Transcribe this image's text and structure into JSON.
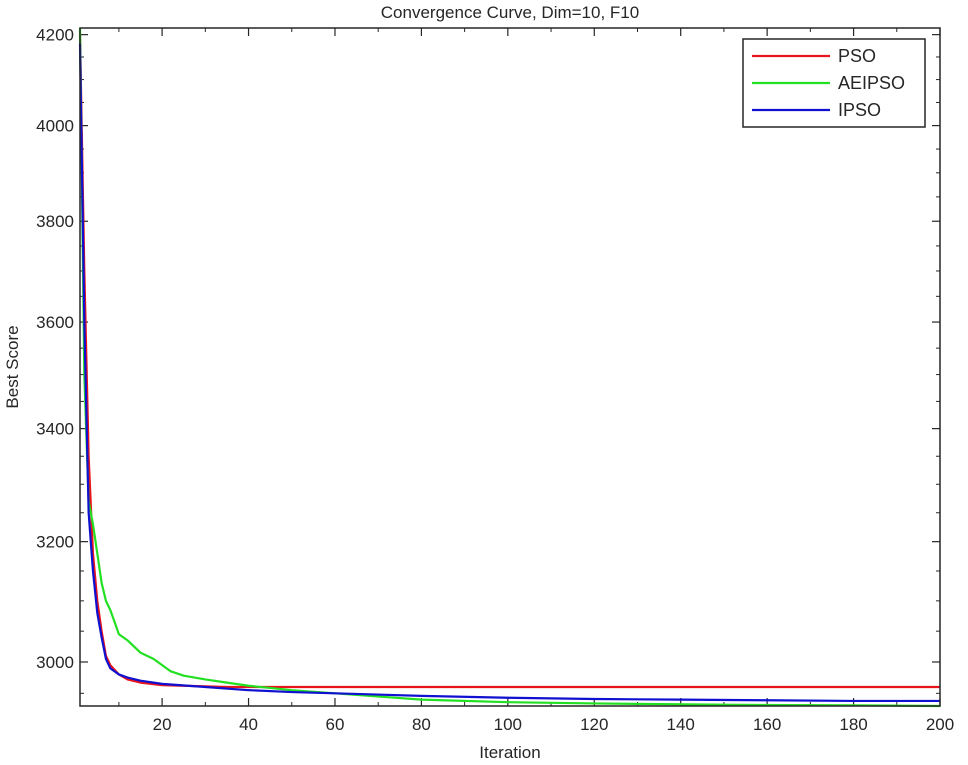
{
  "chart_data": {
    "type": "line",
    "title": "Convergence Curve, Dim=10, F10",
    "xlabel": "Iteration",
    "ylabel": "Best Score",
    "xlim": [
      1,
      200
    ],
    "ylim": [
      2930,
      4215
    ],
    "y_scale": "log",
    "grid": false,
    "legend_position": "top-right",
    "xticks": [
      20,
      40,
      60,
      80,
      100,
      120,
      140,
      160,
      180,
      200
    ],
    "yticks": [
      3000,
      3200,
      3400,
      3600,
      3800,
      4000,
      4200
    ],
    "series": [
      {
        "name": "PSO",
        "color": "#e8141c",
        "points": [
          [
            1,
            4200
          ],
          [
            2,
            3700
          ],
          [
            3,
            3350
          ],
          [
            4,
            3180
          ],
          [
            5,
            3100
          ],
          [
            6,
            3050
          ],
          [
            7,
            3010
          ],
          [
            8,
            2995
          ],
          [
            10,
            2980
          ],
          [
            12,
            2972
          ],
          [
            15,
            2967
          ],
          [
            20,
            2963
          ],
          [
            25,
            2962
          ],
          [
            30,
            2961
          ],
          [
            35,
            2960
          ],
          [
            40,
            2960
          ],
          [
            60,
            2960
          ],
          [
            100,
            2960
          ],
          [
            150,
            2960
          ],
          [
            200,
            2960
          ]
        ]
      },
      {
        "name": "AEIPSO",
        "color": "#22e022",
        "points": [
          [
            1,
            4215
          ],
          [
            2,
            3500
          ],
          [
            3,
            3270
          ],
          [
            4,
            3230
          ],
          [
            5,
            3180
          ],
          [
            6,
            3130
          ],
          [
            7,
            3100
          ],
          [
            8,
            3085
          ],
          [
            9,
            3065
          ],
          [
            10,
            3045
          ],
          [
            12,
            3035
          ],
          [
            15,
            3015
          ],
          [
            18,
            3005
          ],
          [
            20,
            2995
          ],
          [
            22,
            2985
          ],
          [
            25,
            2978
          ],
          [
            30,
            2972
          ],
          [
            35,
            2967
          ],
          [
            40,
            2962
          ],
          [
            50,
            2955
          ],
          [
            60,
            2950
          ],
          [
            80,
            2940
          ],
          [
            100,
            2936
          ],
          [
            120,
            2934
          ],
          [
            150,
            2932
          ],
          [
            180,
            2931
          ],
          [
            200,
            2930
          ]
        ]
      },
      {
        "name": "IPSO",
        "color": "#1010d0",
        "points": [
          [
            1,
            4180
          ],
          [
            2,
            3600
          ],
          [
            3,
            3250
          ],
          [
            4,
            3150
          ],
          [
            5,
            3080
          ],
          [
            6,
            3040
          ],
          [
            7,
            3005
          ],
          [
            8,
            2990
          ],
          [
            10,
            2980
          ],
          [
            12,
            2975
          ],
          [
            15,
            2970
          ],
          [
            20,
            2965
          ],
          [
            30,
            2960
          ],
          [
            40,
            2955
          ],
          [
            50,
            2952
          ],
          [
            60,
            2950
          ],
          [
            80,
            2946
          ],
          [
            100,
            2943
          ],
          [
            120,
            2941
          ],
          [
            140,
            2940
          ],
          [
            160,
            2939
          ],
          [
            180,
            2938
          ],
          [
            200,
            2938
          ]
        ]
      }
    ]
  }
}
